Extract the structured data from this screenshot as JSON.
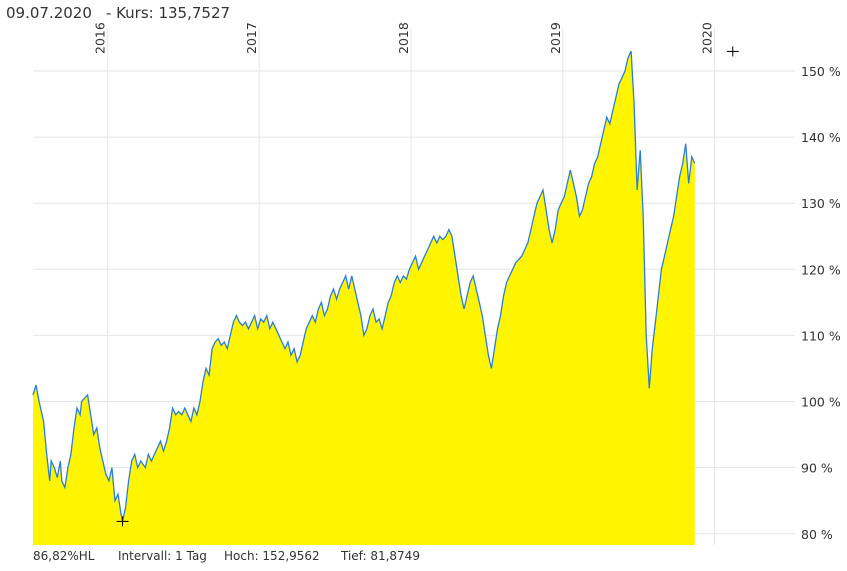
{
  "header": {
    "date": "09.07.2020",
    "kurs_label": "- Kurs: 135,7527"
  },
  "footer": {
    "hl": "86,82%HL",
    "interval": "Intervall: 1 Tag",
    "high": "Hoch: 152,9562",
    "low": "Tief: 81,8749"
  },
  "colors": {
    "fill": "#fff500",
    "line": "#2a7fd4",
    "grid": "#e6e6e6"
  },
  "chart_data": {
    "type": "area",
    "x_ticks": [
      "2016",
      "2017",
      "2018",
      "2019",
      "2020"
    ],
    "y_ticks": [
      "80 %",
      "90 %",
      "100 %",
      "110 %",
      "120 %",
      "130 %",
      "140 %",
      "150 %"
    ],
    "y_tick_values": [
      80,
      90,
      100,
      110,
      120,
      130,
      140,
      150
    ],
    "x_tick_years": [
      2016,
      2017,
      2018,
      2019,
      2020
    ],
    "ylim": [
      78.3,
      156.5
    ],
    "xlim": [
      2015.51,
      2020.53
    ],
    "grid": true,
    "high_marker": {
      "x": 2020.12,
      "y": 152.96
    },
    "low_marker": {
      "x": 2016.1,
      "y": 81.87
    },
    "series": [
      {
        "values": [
          [
            2015.51,
            101
          ],
          [
            2015.53,
            102.5
          ],
          [
            2015.55,
            100
          ],
          [
            2015.57,
            98
          ],
          [
            2015.58,
            97
          ],
          [
            2015.6,
            92
          ],
          [
            2015.62,
            88
          ],
          [
            2015.63,
            91
          ],
          [
            2015.65,
            90
          ],
          [
            2015.67,
            88.5
          ],
          [
            2015.69,
            91
          ],
          [
            2015.7,
            88
          ],
          [
            2015.72,
            87
          ],
          [
            2015.74,
            90
          ],
          [
            2015.76,
            92
          ],
          [
            2015.78,
            96
          ],
          [
            2015.8,
            99
          ],
          [
            2015.82,
            98
          ],
          [
            2015.83,
            100
          ],
          [
            2015.85,
            100.5
          ],
          [
            2015.87,
            101
          ],
          [
            2015.89,
            98
          ],
          [
            2015.91,
            95
          ],
          [
            2015.93,
            96
          ],
          [
            2015.95,
            93
          ],
          [
            2015.97,
            91
          ],
          [
            2015.99,
            89
          ],
          [
            2016.01,
            88
          ],
          [
            2016.03,
            90
          ],
          [
            2016.05,
            85
          ],
          [
            2016.07,
            86
          ],
          [
            2016.09,
            83
          ],
          [
            2016.1,
            81.9
          ],
          [
            2016.12,
            84
          ],
          [
            2016.14,
            88
          ],
          [
            2016.16,
            91
          ],
          [
            2016.18,
            92
          ],
          [
            2016.2,
            90
          ],
          [
            2016.22,
            91
          ],
          [
            2016.25,
            90
          ],
          [
            2016.27,
            92
          ],
          [
            2016.29,
            91
          ],
          [
            2016.31,
            92
          ],
          [
            2016.33,
            93
          ],
          [
            2016.35,
            94
          ],
          [
            2016.37,
            92.5
          ],
          [
            2016.39,
            94
          ],
          [
            2016.41,
            96
          ],
          [
            2016.43,
            99
          ],
          [
            2016.45,
            98
          ],
          [
            2016.47,
            98.5
          ],
          [
            2016.49,
            98
          ],
          [
            2016.51,
            99
          ],
          [
            2016.53,
            98
          ],
          [
            2016.55,
            97
          ],
          [
            2016.57,
            99
          ],
          [
            2016.59,
            98
          ],
          [
            2016.61,
            100
          ],
          [
            2016.63,
            103
          ],
          [
            2016.65,
            105
          ],
          [
            2016.67,
            104
          ],
          [
            2016.69,
            108
          ],
          [
            2016.71,
            109
          ],
          [
            2016.73,
            109.5
          ],
          [
            2016.75,
            108.5
          ],
          [
            2016.77,
            109
          ],
          [
            2016.79,
            108
          ],
          [
            2016.81,
            110
          ],
          [
            2016.83,
            112
          ],
          [
            2016.85,
            113
          ],
          [
            2016.87,
            112
          ],
          [
            2016.89,
            111.5
          ],
          [
            2016.91,
            112
          ],
          [
            2016.93,
            111
          ],
          [
            2016.95,
            112
          ],
          [
            2016.97,
            113
          ],
          [
            2016.99,
            111
          ],
          [
            2017.01,
            112.5
          ],
          [
            2017.03,
            112
          ],
          [
            2017.05,
            113
          ],
          [
            2017.07,
            111
          ],
          [
            2017.09,
            112
          ],
          [
            2017.11,
            111
          ],
          [
            2017.13,
            110
          ],
          [
            2017.15,
            109
          ],
          [
            2017.17,
            108
          ],
          [
            2017.19,
            109
          ],
          [
            2017.21,
            107
          ],
          [
            2017.23,
            108
          ],
          [
            2017.25,
            106
          ],
          [
            2017.27,
            107
          ],
          [
            2017.29,
            109
          ],
          [
            2017.31,
            111
          ],
          [
            2017.33,
            112
          ],
          [
            2017.35,
            113
          ],
          [
            2017.37,
            112
          ],
          [
            2017.39,
            114
          ],
          [
            2017.41,
            115
          ],
          [
            2017.43,
            113
          ],
          [
            2017.45,
            114
          ],
          [
            2017.47,
            116
          ],
          [
            2017.49,
            117
          ],
          [
            2017.51,
            115.5
          ],
          [
            2017.53,
            117
          ],
          [
            2017.55,
            118
          ],
          [
            2017.57,
            119
          ],
          [
            2017.59,
            117
          ],
          [
            2017.61,
            119
          ],
          [
            2017.63,
            117
          ],
          [
            2017.65,
            115
          ],
          [
            2017.67,
            113
          ],
          [
            2017.69,
            110
          ],
          [
            2017.71,
            111
          ],
          [
            2017.73,
            113
          ],
          [
            2017.75,
            114
          ],
          [
            2017.77,
            112
          ],
          [
            2017.79,
            112.5
          ],
          [
            2017.81,
            111
          ],
          [
            2017.83,
            113
          ],
          [
            2017.85,
            115
          ],
          [
            2017.87,
            116
          ],
          [
            2017.89,
            118
          ],
          [
            2017.91,
            119
          ],
          [
            2017.93,
            118
          ],
          [
            2017.95,
            119
          ],
          [
            2017.97,
            118.5
          ],
          [
            2017.99,
            120
          ],
          [
            2018.01,
            121
          ],
          [
            2018.03,
            122
          ],
          [
            2018.05,
            120
          ],
          [
            2018.07,
            121
          ],
          [
            2018.09,
            122
          ],
          [
            2018.11,
            123
          ],
          [
            2018.13,
            124
          ],
          [
            2018.15,
            125
          ],
          [
            2018.17,
            124
          ],
          [
            2018.19,
            125
          ],
          [
            2018.21,
            124.5
          ],
          [
            2018.23,
            125
          ],
          [
            2018.25,
            126
          ],
          [
            2018.27,
            125
          ],
          [
            2018.29,
            122
          ],
          [
            2018.31,
            119
          ],
          [
            2018.33,
            116
          ],
          [
            2018.35,
            114
          ],
          [
            2018.37,
            116
          ],
          [
            2018.39,
            118
          ],
          [
            2018.41,
            119
          ],
          [
            2018.43,
            117
          ],
          [
            2018.45,
            115
          ],
          [
            2018.47,
            113
          ],
          [
            2018.49,
            110
          ],
          [
            2018.51,
            107
          ],
          [
            2018.53,
            105
          ],
          [
            2018.55,
            108
          ],
          [
            2018.57,
            111
          ],
          [
            2018.59,
            113
          ],
          [
            2018.61,
            116
          ],
          [
            2018.63,
            118
          ],
          [
            2018.65,
            119
          ],
          [
            2018.67,
            120
          ],
          [
            2018.69,
            121
          ],
          [
            2018.71,
            121.5
          ],
          [
            2018.73,
            122
          ],
          [
            2018.75,
            123
          ],
          [
            2018.77,
            124
          ],
          [
            2018.79,
            126
          ],
          [
            2018.81,
            128
          ],
          [
            2018.83,
            130
          ],
          [
            2018.85,
            131
          ],
          [
            2018.87,
            132
          ],
          [
            2018.89,
            129
          ],
          [
            2018.91,
            126
          ],
          [
            2018.93,
            124
          ],
          [
            2018.95,
            126
          ],
          [
            2018.97,
            129
          ],
          [
            2018.99,
            130
          ],
          [
            2019.01,
            131
          ],
          [
            2019.03,
            133
          ],
          [
            2019.05,
            135
          ],
          [
            2019.07,
            133
          ],
          [
            2019.09,
            131
          ],
          [
            2019.11,
            128
          ],
          [
            2019.13,
            129
          ],
          [
            2019.15,
            131
          ],
          [
            2019.17,
            133
          ],
          [
            2019.19,
            134
          ],
          [
            2019.21,
            136
          ],
          [
            2019.23,
            137
          ],
          [
            2019.25,
            139
          ],
          [
            2019.27,
            141
          ],
          [
            2019.29,
            143
          ],
          [
            2019.31,
            142
          ],
          [
            2019.33,
            144
          ],
          [
            2019.35,
            146
          ],
          [
            2019.37,
            148
          ],
          [
            2019.39,
            149
          ],
          [
            2019.41,
            150
          ],
          [
            2019.43,
            152
          ],
          [
            2019.45,
            153
          ],
          [
            2019.47,
            145
          ],
          [
            2019.49,
            132
          ],
          [
            2019.51,
            138
          ],
          [
            2019.53,
            128
          ],
          [
            2019.55,
            110
          ],
          [
            2019.57,
            102
          ],
          [
            2019.59,
            108
          ],
          [
            2019.61,
            112
          ],
          [
            2019.63,
            116
          ],
          [
            2019.65,
            120
          ],
          [
            2019.67,
            122
          ],
          [
            2019.69,
            124
          ],
          [
            2019.71,
            126
          ],
          [
            2019.73,
            128
          ],
          [
            2019.75,
            131
          ],
          [
            2019.77,
            134
          ],
          [
            2019.79,
            136
          ],
          [
            2019.81,
            139
          ],
          [
            2019.83,
            133
          ],
          [
            2019.85,
            137
          ],
          [
            2019.87,
            136
          ]
        ]
      }
    ]
  }
}
